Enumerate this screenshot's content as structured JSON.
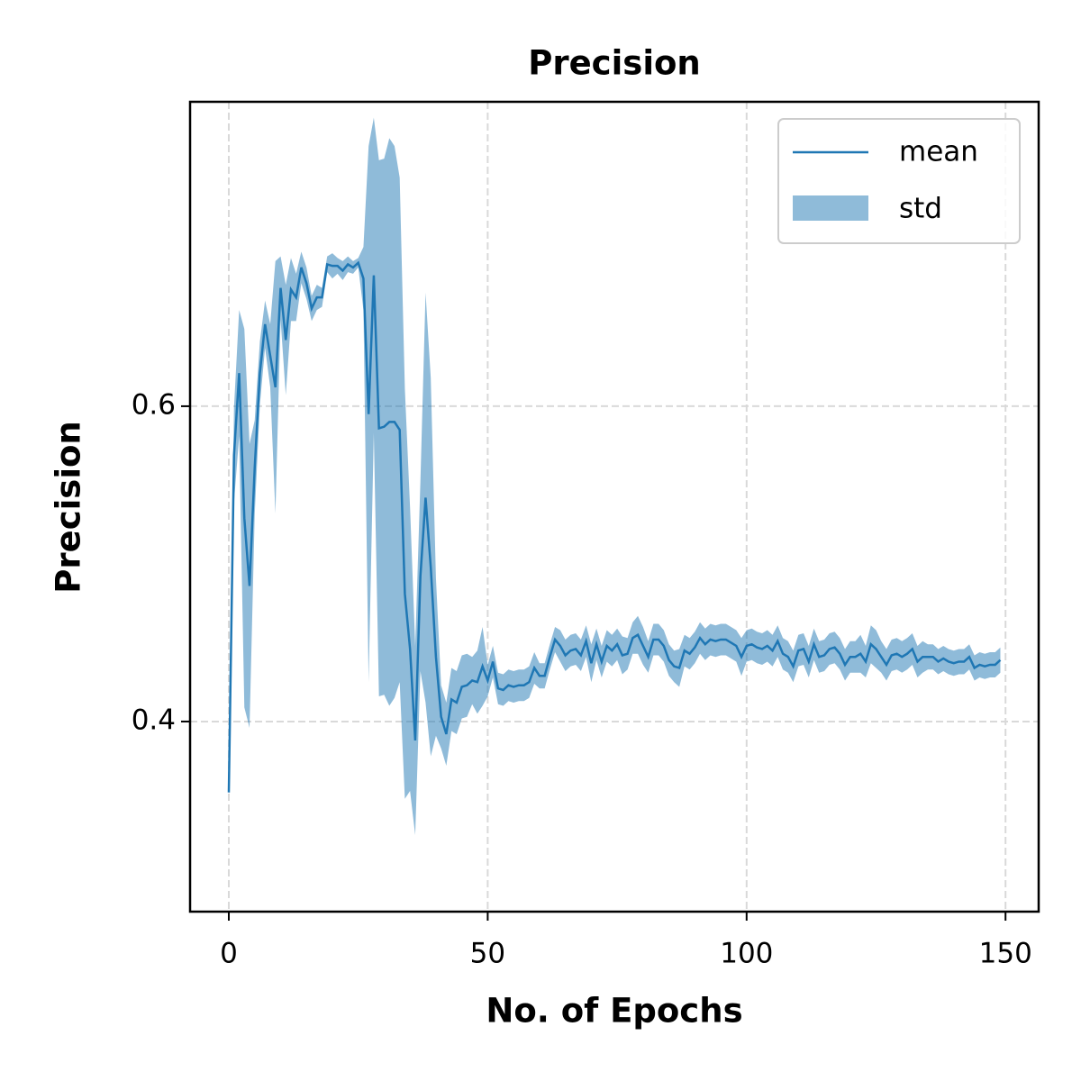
{
  "chart_data": {
    "type": "line",
    "title": "Precision",
    "x_label": "No. of Epochs",
    "y_label": "Precision",
    "xlim": [
      -7.48,
      156.4
    ],
    "ylim": [
      0.2794,
      0.7931
    ],
    "xticks": [
      0,
      50,
      100,
      150
    ],
    "yticks": [
      0.4,
      0.6
    ],
    "grid": true,
    "legend": "upper right",
    "series": [
      {
        "name": "mean",
        "color": "#1f77b4",
        "values": [
          0.355,
          0.569,
          0.621,
          0.529,
          0.486,
          0.561,
          0.621,
          0.652,
          0.632,
          0.612,
          0.675,
          0.642,
          0.674,
          0.669,
          0.688,
          0.678,
          0.662,
          0.669,
          0.669,
          0.69,
          0.689,
          0.689,
          0.686,
          0.69,
          0.688,
          0.691,
          0.681,
          0.595,
          0.683,
          0.586,
          0.587,
          0.59,
          0.59,
          0.585,
          0.481,
          0.446,
          0.388,
          0.492,
          0.542,
          0.498,
          0.441,
          0.403,
          0.392,
          0.414,
          0.412,
          0.422,
          0.423,
          0.426,
          0.425,
          0.435,
          0.426,
          0.438,
          0.421,
          0.42,
          0.423,
          0.422,
          0.423,
          0.423,
          0.425,
          0.434,
          0.429,
          0.429,
          0.441,
          0.452,
          0.448,
          0.442,
          0.445,
          0.446,
          0.442,
          0.451,
          0.437,
          0.449,
          0.438,
          0.448,
          0.445,
          0.449,
          0.442,
          0.443,
          0.453,
          0.455,
          0.448,
          0.441,
          0.452,
          0.452,
          0.448,
          0.439,
          0.435,
          0.434,
          0.445,
          0.443,
          0.447,
          0.453,
          0.449,
          0.452,
          0.451,
          0.452,
          0.452,
          0.45,
          0.448,
          0.441,
          0.448,
          0.449,
          0.447,
          0.446,
          0.448,
          0.445,
          0.451,
          0.443,
          0.441,
          0.435,
          0.445,
          0.446,
          0.438,
          0.449,
          0.441,
          0.442,
          0.446,
          0.447,
          0.443,
          0.436,
          0.441,
          0.441,
          0.443,
          0.438,
          0.449,
          0.446,
          0.441,
          0.436,
          0.442,
          0.443,
          0.441,
          0.443,
          0.446,
          0.438,
          0.441,
          0.441,
          0.441,
          0.438,
          0.44,
          0.438,
          0.437,
          0.438,
          0.438,
          0.441,
          0.434,
          0.436,
          0.435,
          0.436,
          0.436,
          0.439
        ]
      }
    ],
    "std": {
      "name": "std",
      "color": "#1f77b4",
      "alpha": 0.5,
      "values": [
        0.002,
        0.03,
        0.04,
        0.12,
        0.09,
        0.03,
        0.02,
        0.015,
        0.02,
        0.08,
        0.02,
        0.035,
        0.02,
        0.015,
        0.01,
        0.01,
        0.008,
        0.008,
        0.006,
        0.005,
        0.008,
        0.005,
        0.006,
        0.005,
        0.004,
        0.003,
        0.02,
        0.17,
        0.1,
        0.17,
        0.17,
        0.18,
        0.175,
        0.16,
        0.13,
        0.09,
        0.06,
        0.06,
        0.13,
        0.12,
        0.05,
        0.02,
        0.02,
        0.02,
        0.02,
        0.02,
        0.02,
        0.015,
        0.02,
        0.025,
        0.01,
        0.01,
        0.01,
        0.01,
        0.01,
        0.01,
        0.01,
        0.01,
        0.01,
        0.01,
        0.008,
        0.008,
        0.008,
        0.008,
        0.01,
        0.01,
        0.01,
        0.01,
        0.01,
        0.01,
        0.012,
        0.01,
        0.01,
        0.01,
        0.01,
        0.01,
        0.012,
        0.01,
        0.01,
        0.012,
        0.012,
        0.01,
        0.01,
        0.01,
        0.01,
        0.01,
        0.01,
        0.012,
        0.01,
        0.01,
        0.01,
        0.01,
        0.01,
        0.01,
        0.01,
        0.01,
        0.01,
        0.01,
        0.01,
        0.012,
        0.01,
        0.01,
        0.01,
        0.01,
        0.01,
        0.01,
        0.01,
        0.01,
        0.01,
        0.01,
        0.01,
        0.01,
        0.01,
        0.01,
        0.01,
        0.01,
        0.01,
        0.01,
        0.01,
        0.01,
        0.01,
        0.01,
        0.012,
        0.01,
        0.012,
        0.012,
        0.01,
        0.01,
        0.01,
        0.01,
        0.01,
        0.01,
        0.01,
        0.01,
        0.01,
        0.008,
        0.008,
        0.008,
        0.008,
        0.008,
        0.008,
        0.008,
        0.008,
        0.008,
        0.008,
        0.008,
        0.008,
        0.008,
        0.008,
        0.008
      ]
    }
  }
}
